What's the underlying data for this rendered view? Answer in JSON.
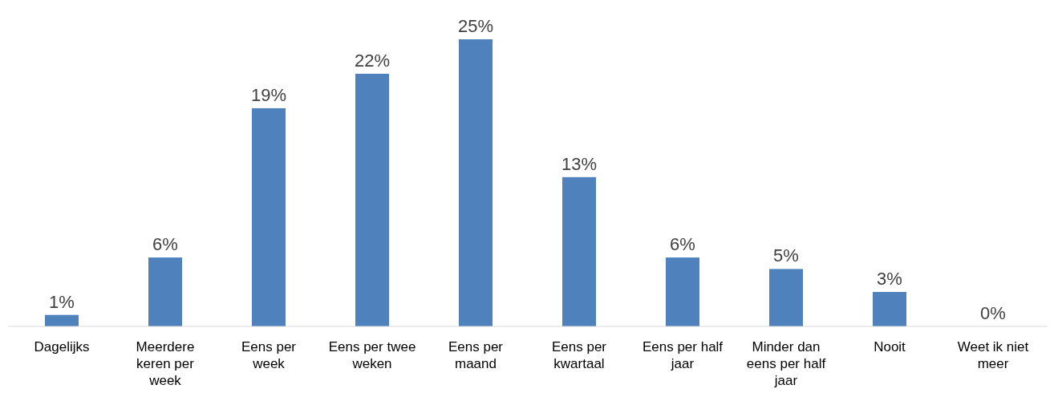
{
  "chart_data": {
    "type": "bar",
    "categories": [
      "Dagelijks",
      "Meerdere keren per week",
      "Eens per week",
      "Eens per twee weken",
      "Eens per maand",
      "Eens per kwartaal",
      "Eens per half jaar",
      "Minder dan eens per half jaar",
      "Nooit",
      "Weet ik niet meer"
    ],
    "values": [
      1,
      6,
      19,
      22,
      25,
      13,
      6,
      5,
      3,
      0
    ],
    "value_labels": [
      "1%",
      "6%",
      "19%",
      "22%",
      "25%",
      "13%",
      "6%",
      "5%",
      "3%",
      "0%"
    ],
    "color": "#4f81bd"
  }
}
